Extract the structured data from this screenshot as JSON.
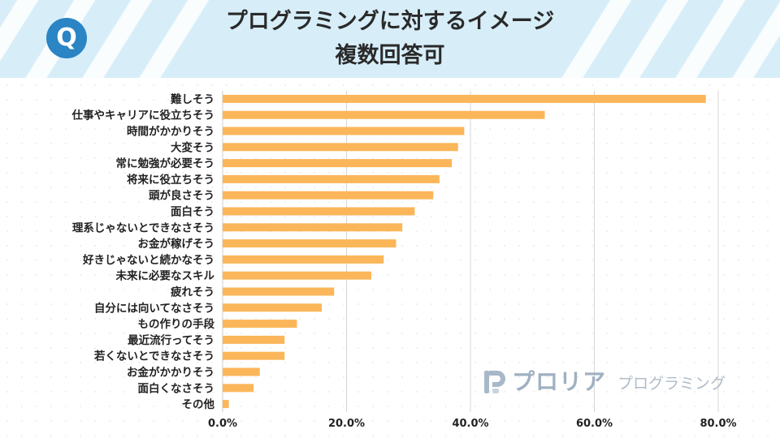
{
  "header": {
    "badge": "Q",
    "title_line1": "プログラミングに対するイメージ",
    "title_line2": "複数回答可",
    "bg_color": "#d7eef9",
    "badge_color": "#2b84c4"
  },
  "logo": {
    "brand": "プロリア",
    "sub": "プログラミング"
  },
  "chart_data": {
    "type": "bar",
    "orientation": "horizontal",
    "title": "プログラミングに対するイメージ 複数回答可",
    "categories": [
      "難しそう",
      "仕事やキャリアに役立ちそう",
      "時間がかかりそう",
      "大変そう",
      "常に勉強が必要そう",
      "将来に役立ちそう",
      "頭が良さそう",
      "面白そう",
      "理系じゃないとできなさそう",
      "お金が稼げそう",
      "好きじゃないと続かなそう",
      "未来に必要なスキル",
      "疲れそう",
      "自分には向いてなさそう",
      "もの作りの手段",
      "最近流行ってそう",
      "若くないとできなさそう",
      "お金がかかりそう",
      "面白くなさそう",
      "その他"
    ],
    "values": [
      78,
      52,
      39,
      38,
      37,
      35,
      34,
      31,
      29,
      28,
      26,
      24,
      18,
      16,
      12,
      10,
      10,
      6,
      5,
      1
    ],
    "xlim": [
      0,
      90
    ],
    "xticks": [
      0,
      20,
      40,
      60,
      80
    ],
    "xtick_labels": [
      "0.0%",
      "20.0%",
      "40.0%",
      "60.0%",
      "80.0%"
    ],
    "bar_color": "#fbb65a",
    "grid_color": "#d5d5d5",
    "xlabel": "",
    "ylabel": "",
    "grid": true
  }
}
